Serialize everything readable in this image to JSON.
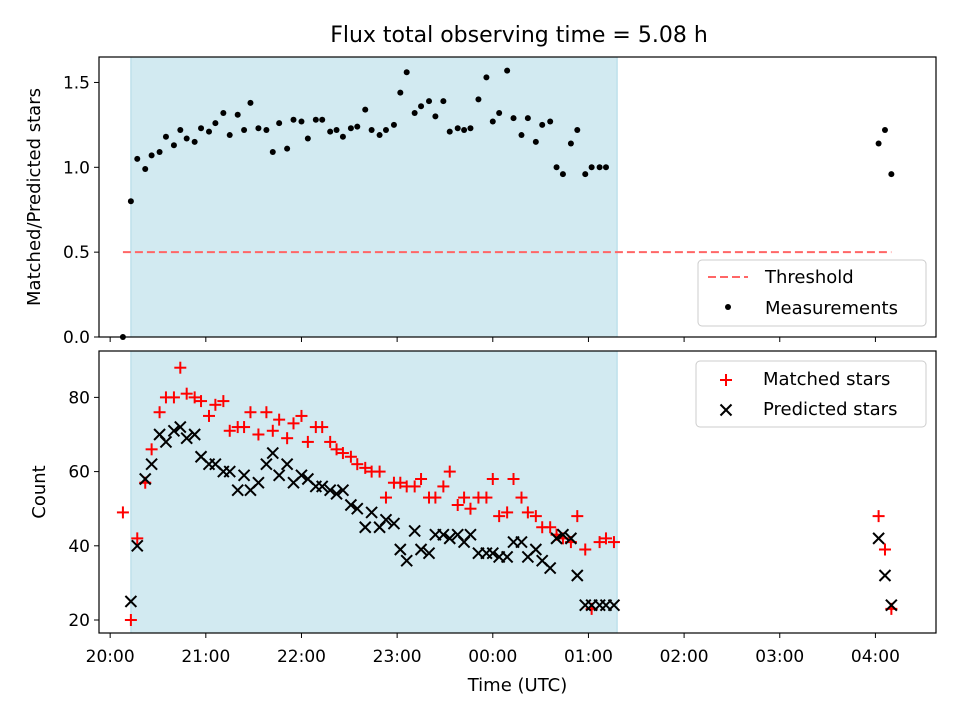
{
  "figure_title": "Flux total observing time = 5.08 h",
  "colors": {
    "shade": "#add8e6",
    "threshold": "#ff6666",
    "measurement": "#000000",
    "matched": "#ff0000",
    "predicted": "#000000"
  },
  "chart_data": [
    {
      "type": "scatter",
      "title": "Flux total observing time = 5.08 h",
      "xlabel": "",
      "ylabel": "Matched/Predicted stars",
      "xlim": [
        "19:53",
        "04:38"
      ],
      "ylim": [
        0.0,
        1.65
      ],
      "yticks": [
        0.0,
        0.5,
        1.0,
        1.5
      ],
      "ytick_labels": [
        "0.0",
        "0.5",
        "1.0",
        "1.5"
      ],
      "grid": false,
      "legend_position": "lower right",
      "shaded_interval": [
        "20:13",
        "01:18"
      ],
      "series": [
        {
          "name": "Threshold",
          "kind": "dashed-line",
          "x": [
            "20:08",
            "04:10"
          ],
          "y": [
            0.5,
            0.5
          ]
        },
        {
          "name": "Measurements",
          "kind": "points",
          "x": [
            "20:08",
            "20:13",
            "20:17",
            "20:22",
            "20:26",
            "20:31",
            "20:35",
            "20:40",
            "20:44",
            "20:48",
            "20:53",
            "20:57",
            "21:02",
            "21:06",
            "21:11",
            "21:15",
            "21:20",
            "21:24",
            "21:28",
            "21:33",
            "21:38",
            "21:42",
            "21:46",
            "21:51",
            "21:55",
            "22:00",
            "22:04",
            "22:09",
            "22:13",
            "22:18",
            "22:22",
            "22:26",
            "22:31",
            "22:35",
            "22:40",
            "22:44",
            "22:49",
            "22:53",
            "22:58",
            "23:02",
            "23:06",
            "23:11",
            "23:15",
            "23:20",
            "23:24",
            "23:29",
            "23:33",
            "23:38",
            "23:42",
            "23:46",
            "23:51",
            "23:56",
            "00:00",
            "00:04",
            "00:09",
            "00:13",
            "00:18",
            "00:22",
            "00:27",
            "00:31",
            "00:36",
            "00:40",
            "00:44",
            "00:49",
            "00:53",
            "00:58",
            "01:02",
            "01:07",
            "01:11",
            "04:02",
            "04:06",
            "04:10"
          ],
          "y": [
            0.0,
            0.8,
            1.05,
            0.99,
            1.07,
            1.09,
            1.18,
            1.13,
            1.22,
            1.17,
            1.15,
            1.23,
            1.21,
            1.26,
            1.32,
            1.19,
            1.31,
            1.22,
            1.38,
            1.23,
            1.22,
            1.09,
            1.26,
            1.11,
            1.28,
            1.27,
            1.17,
            1.28,
            1.28,
            1.21,
            1.22,
            1.18,
            1.23,
            1.24,
            1.34,
            1.22,
            1.19,
            1.22,
            1.25,
            1.44,
            1.56,
            1.32,
            1.36,
            1.39,
            1.3,
            1.39,
            1.21,
            1.23,
            1.22,
            1.23,
            1.4,
            1.53,
            1.27,
            1.32,
            1.57,
            1.29,
            1.19,
            1.29,
            1.15,
            1.25,
            1.27,
            1.0,
            0.96,
            1.14,
            1.22,
            0.96,
            1.0,
            1.0,
            1.0,
            1.14,
            1.22,
            0.96
          ]
        }
      ]
    },
    {
      "type": "scatter",
      "xlabel": "Time (UTC)",
      "ylabel": "Count",
      "xlim": [
        "19:53",
        "04:38"
      ],
      "ylim": [
        16.5,
        92.5
      ],
      "yticks": [
        20,
        40,
        60,
        80
      ],
      "ytick_labels": [
        "20",
        "40",
        "60",
        "80"
      ],
      "xtick_labels": [
        "20:00",
        "21:00",
        "22:00",
        "23:00",
        "00:00",
        "01:00",
        "02:00",
        "03:00",
        "04:00"
      ],
      "grid": false,
      "legend_position": "upper right",
      "shaded_interval": [
        "20:13",
        "01:18"
      ],
      "series": [
        {
          "name": "Matched stars",
          "marker": "+",
          "x": [
            "20:08",
            "20:13",
            "20:17",
            "20:22",
            "20:26",
            "20:31",
            "20:35",
            "20:40",
            "20:44",
            "20:48",
            "20:53",
            "20:57",
            "21:02",
            "21:06",
            "21:11",
            "21:15",
            "21:20",
            "21:24",
            "21:28",
            "21:33",
            "21:38",
            "21:42",
            "21:46",
            "21:51",
            "21:55",
            "22:00",
            "22:04",
            "22:09",
            "22:13",
            "22:18",
            "22:22",
            "22:26",
            "22:31",
            "22:35",
            "22:40",
            "22:44",
            "22:49",
            "22:53",
            "22:58",
            "23:02",
            "23:06",
            "23:11",
            "23:15",
            "23:20",
            "23:24",
            "23:29",
            "23:33",
            "23:38",
            "23:42",
            "23:46",
            "23:51",
            "23:56",
            "00:00",
            "00:04",
            "00:09",
            "00:13",
            "00:18",
            "00:22",
            "00:27",
            "00:31",
            "00:36",
            "00:40",
            "00:44",
            "00:49",
            "00:53",
            "00:58",
            "01:02",
            "01:07",
            "01:11",
            "01:16",
            "04:02",
            "04:06",
            "04:10"
          ],
          "y": [
            49,
            20,
            42,
            57,
            66,
            76,
            80,
            80,
            88,
            81,
            80,
            79,
            75,
            78,
            79,
            71,
            72,
            72,
            76,
            70,
            76,
            71,
            74,
            69,
            73,
            75,
            68,
            72,
            72,
            68,
            66,
            65,
            64,
            62,
            61,
            60,
            60,
            53,
            57,
            57,
            56,
            56,
            58,
            53,
            53,
            56,
            60,
            51,
            53,
            50,
            53,
            53,
            58,
            48,
            49,
            58,
            53,
            49,
            48,
            45,
            45,
            43,
            42,
            41,
            48,
            39,
            23,
            41,
            42,
            41,
            48,
            39,
            23
          ]
        },
        {
          "name": "Predicted stars",
          "marker": "x",
          "x": [
            "20:13",
            "20:17",
            "20:22",
            "20:26",
            "20:31",
            "20:35",
            "20:40",
            "20:44",
            "20:48",
            "20:53",
            "20:57",
            "21:02",
            "21:06",
            "21:11",
            "21:15",
            "21:20",
            "21:24",
            "21:28",
            "21:33",
            "21:38",
            "21:42",
            "21:46",
            "21:51",
            "21:55",
            "22:00",
            "22:04",
            "22:09",
            "22:13",
            "22:18",
            "22:22",
            "22:26",
            "22:31",
            "22:35",
            "22:40",
            "22:44",
            "22:49",
            "22:53",
            "22:58",
            "23:02",
            "23:06",
            "23:11",
            "23:15",
            "23:20",
            "23:24",
            "23:29",
            "23:33",
            "23:38",
            "23:42",
            "23:46",
            "23:51",
            "23:56",
            "00:00",
            "00:04",
            "00:09",
            "00:13",
            "00:18",
            "00:22",
            "00:27",
            "00:31",
            "00:36",
            "00:40",
            "00:44",
            "00:49",
            "00:53",
            "00:58",
            "01:02",
            "01:07",
            "01:11",
            "01:16",
            "04:02",
            "04:06",
            "04:10"
          ],
          "y": [
            25,
            40,
            58,
            62,
            70,
            68,
            71,
            72,
            69,
            70,
            64,
            62,
            62,
            60,
            60,
            55,
            59,
            55,
            57,
            62,
            65,
            59,
            62,
            57,
            59,
            58,
            56,
            56,
            55,
            54,
            55,
            51,
            50,
            45,
            49,
            45,
            47,
            46,
            39,
            36,
            44,
            39,
            38,
            43,
            43,
            42,
            43,
            41,
            43,
            38,
            38,
            38,
            37,
            37,
            41,
            41,
            37,
            39,
            36,
            34,
            42,
            43,
            42,
            32,
            24,
            24,
            24,
            24,
            24,
            42,
            32,
            24
          ]
        }
      ]
    }
  ]
}
